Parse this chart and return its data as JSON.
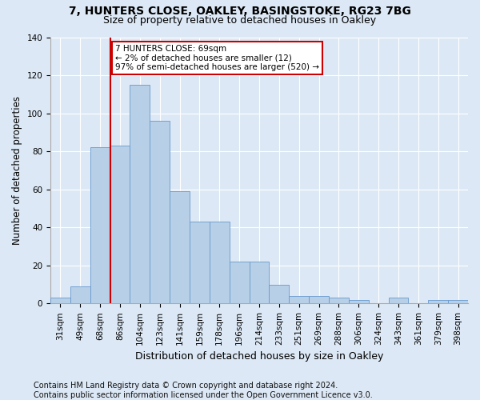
{
  "title1": "7, HUNTERS CLOSE, OAKLEY, BASINGSTOKE, RG23 7BG",
  "title2": "Size of property relative to detached houses in Oakley",
  "xlabel": "Distribution of detached houses by size in Oakley",
  "ylabel": "Number of detached properties",
  "footer": "Contains HM Land Registry data © Crown copyright and database right 2024.\nContains public sector information licensed under the Open Government Licence v3.0.",
  "categories": [
    "31sqm",
    "49sqm",
    "68sqm",
    "86sqm",
    "104sqm",
    "123sqm",
    "141sqm",
    "159sqm",
    "178sqm",
    "196sqm",
    "214sqm",
    "233sqm",
    "251sqm",
    "269sqm",
    "288sqm",
    "306sqm",
    "324sqm",
    "343sqm",
    "361sqm",
    "379sqm",
    "398sqm"
  ],
  "values": [
    3,
    9,
    82,
    83,
    115,
    96,
    59,
    43,
    43,
    22,
    22,
    10,
    4,
    4,
    3,
    2,
    0,
    3,
    0,
    2,
    2
  ],
  "bar_color": "#b8cfe8",
  "bar_edge_color": "#6699cc",
  "vline_x": 2.5,
  "vline_color": "#cc0000",
  "annotation_line1": "7 HUNTERS CLOSE: 69sqm",
  "annotation_line2": "← 2% of detached houses are smaller (12)",
  "annotation_line3": "97% of semi-detached houses are larger (520) →",
  "annotation_box_facecolor": "#ffffff",
  "annotation_box_edgecolor": "#cc0000",
  "ylim": [
    0,
    140
  ],
  "yticks": [
    0,
    20,
    40,
    60,
    80,
    100,
    120,
    140
  ],
  "bg_color": "#dce8f5",
  "grid_color": "#ffffff",
  "title1_fontsize": 10,
  "title2_fontsize": 9,
  "ylabel_fontsize": 8.5,
  "xlabel_fontsize": 9,
  "tick_fontsize": 7.5,
  "footer_fontsize": 7,
  "annotation_fontsize": 7.5
}
